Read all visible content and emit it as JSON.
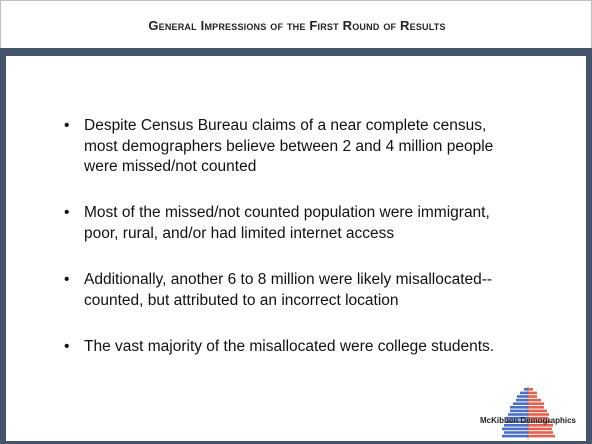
{
  "header": {
    "title": "General Impressions of the First Round of Results"
  },
  "bullets": [
    {
      "lines": [
        "Despite Census Bureau claims of a near complete census,",
        "most demographers believe between 2 and 4 million people",
        "were missed/not counted"
      ]
    },
    {
      "lines": [
        "Most of the missed/not counted population were immigrant,",
        "poor, rural, and/or had limited internet access"
      ]
    },
    {
      "lines": [
        "Additionally, another 6 to 8 million were likely misallocated--",
        "counted, but attributed to an incorrect location"
      ]
    },
    {
      "lines": [
        "The vast majority of the misallocated were college students."
      ]
    }
  ],
  "logo": {
    "text": "McKibben Demographics"
  }
}
